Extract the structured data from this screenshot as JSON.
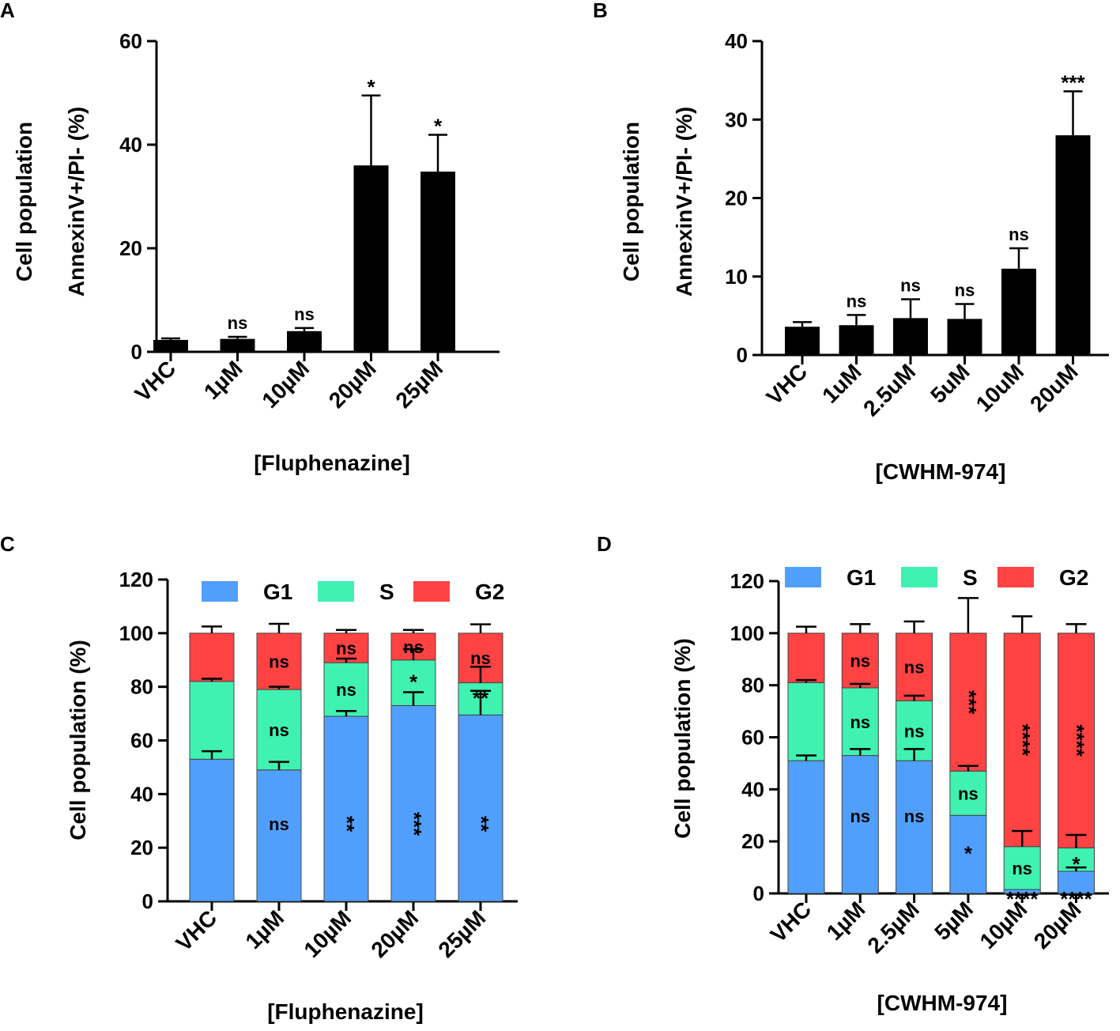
{
  "chart_data": [
    {
      "panel": "A",
      "type": "bar",
      "ylabel": [
        "Cell population",
        "AnnexinV+/PI- (%)"
      ],
      "xlabel": "[Fluphenazine]",
      "categories": [
        "VHC",
        "1µM",
        "10µM",
        "20µM",
        "25µM"
      ],
      "values": [
        2.3,
        2.5,
        4.0,
        36.0,
        34.8
      ],
      "errors": [
        0.3,
        0.4,
        0.6,
        13.5,
        7.1
      ],
      "significance": [
        "",
        "ns",
        "ns",
        "*",
        "*"
      ],
      "ylim": [
        0,
        60
      ],
      "yticks": [
        "0",
        "20",
        "40",
        "60"
      ]
    },
    {
      "panel": "B",
      "type": "bar",
      "ylabel": [
        "Cell population",
        "AnnexinV+/PI- (%)"
      ],
      "xlabel": "[CWHM-974]",
      "categories": [
        "VHC",
        "1uM",
        "2.5uM",
        "5uM",
        "10uM",
        "20uM"
      ],
      "values": [
        3.6,
        3.8,
        4.7,
        4.6,
        11.0,
        28.0
      ],
      "errors": [
        0.6,
        1.3,
        2.4,
        1.9,
        2.6,
        5.6
      ],
      "significance": [
        "",
        "ns",
        "ns",
        "ns",
        "ns",
        "***"
      ],
      "ylim": [
        0,
        40
      ],
      "yticks": [
        "0",
        "10",
        "20",
        "30",
        "40"
      ]
    },
    {
      "panel": "C",
      "type": "stacked-bar",
      "ylabel": "Cell population (%)",
      "xlabel": "[Fluphenazine]",
      "categories": [
        "VHC",
        "1µM",
        "10µM",
        "20µM",
        "25µM"
      ],
      "series": [
        {
          "name": "G1",
          "color": "#519ffc",
          "values": [
            53,
            49,
            69,
            73,
            69.5
          ],
          "errors": [
            3,
            3,
            2,
            5,
            9
          ],
          "significance": [
            "",
            "ns",
            "**",
            "***",
            "**"
          ]
        },
        {
          "name": "S",
          "color": "#3ff2b2",
          "values": [
            29,
            30,
            20,
            17,
            12
          ],
          "errors": [
            1,
            1,
            1.5,
            4,
            6
          ],
          "significance": [
            "",
            "ns",
            "ns",
            "*",
            "**"
          ]
        },
        {
          "name": "G2",
          "color": "#ff4242",
          "values": [
            18,
            21,
            11,
            10,
            18.5
          ],
          "errors": [
            2.5,
            3.5,
            1.2,
            1.2,
            3.3
          ],
          "significance": [
            "",
            "ns",
            "ns",
            "ns",
            "ns"
          ]
        }
      ],
      "ylim": [
        0,
        120
      ],
      "yticks": [
        "0",
        "20",
        "40",
        "60",
        "80",
        "100",
        "120"
      ],
      "legend": "top"
    },
    {
      "panel": "D",
      "type": "stacked-bar",
      "ylabel": "Cell population (%)",
      "xlabel": "[CWHM-974]",
      "categories": [
        "VHC",
        "1µM",
        "2.5µM",
        "5µM",
        "10µM",
        "20µM"
      ],
      "series": [
        {
          "name": "G1",
          "color": "#519ffc",
          "values": [
            51,
            53,
            51,
            30,
            1.5,
            8.5
          ],
          "errors": [
            2,
            2.5,
            4.5,
            0,
            0,
            1.5
          ],
          "significance": [
            "",
            "ns",
            "ns",
            "*",
            "****",
            "****"
          ]
        },
        {
          "name": "S",
          "color": "#3ff2b2",
          "values": [
            30,
            26,
            23,
            17,
            16.5,
            9
          ],
          "errors": [
            1,
            1.5,
            2,
            2,
            6,
            5
          ],
          "significance": [
            "",
            "ns",
            "ns",
            "ns",
            "ns",
            "*"
          ]
        },
        {
          "name": "G2",
          "color": "#ff4242",
          "values": [
            19,
            21,
            26,
            53,
            82,
            82.5
          ],
          "errors": [
            2.5,
            3.5,
            4.5,
            13.5,
            6.5,
            3.5
          ],
          "significance": [
            "",
            "ns",
            "ns",
            "***",
            "****",
            "****"
          ]
        }
      ],
      "ylim": [
        0,
        120
      ],
      "yticks": [
        "0",
        "20",
        "40",
        "60",
        "80",
        "100",
        "120"
      ],
      "legend": "top"
    }
  ]
}
